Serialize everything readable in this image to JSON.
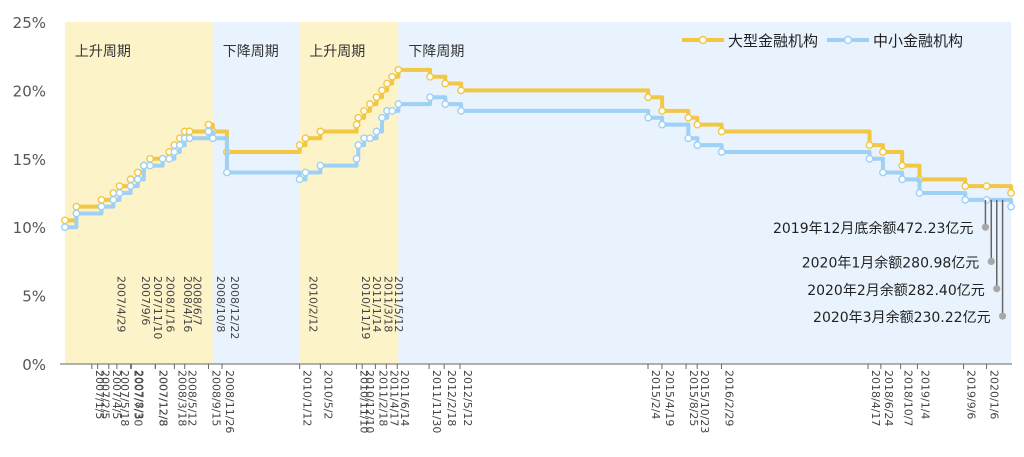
{
  "chart_data": {
    "type": "line",
    "ylim": [
      0,
      25
    ],
    "y_ticks": [
      "0%",
      "5%",
      "10%",
      "15%",
      "20%",
      "25%"
    ],
    "legend_position": "top-right",
    "legend": [
      "大型金融机构",
      "中小金融机构"
    ],
    "colors": {
      "large": "#f2c744",
      "small": "#9fd0f5",
      "up_band": "#fdf3c9",
      "down_band": "#e8f3fd",
      "marker": "#a8a8a8",
      "grid_text": "#555555"
    },
    "periods": [
      {
        "label": "上升周期",
        "kind": "up",
        "start": "2006-08-15",
        "end": "2008-10-08"
      },
      {
        "label": "下降周期",
        "kind": "down",
        "start": "2008-10-08",
        "end": "2010-01-10"
      },
      {
        "label": "上升周期",
        "kind": "up",
        "start": "2010-01-10",
        "end": "2011-06-20"
      },
      {
        "label": "下降周期",
        "kind": "down",
        "start": "2011-06-20",
        "end": "2020-05-15"
      }
    ],
    "top_labels": [
      "2007/4/29",
      "2007/9/6",
      "2007/11/10",
      "2008/1/16",
      "2008/4/16",
      "2008/6/7",
      "2008/10/8",
      "2008/12/22",
      "2010/2/12",
      "2010/11/19",
      "2011/1/14",
      "2011/3/18",
      "2011/5/12"
    ],
    "bottom_labels": [
      "2007/1/5",
      "2007/2/5",
      "2007/4/5",
      "2007/5/18",
      "2007/7/30",
      "2007/8/3",
      "2007/12/8",
      "2007/12/8",
      "2008/3/18",
      "2008/5/12",
      "2008/9/15",
      "2008/11/26",
      "2010/1/12",
      "2010/5/2",
      "2010/11/10",
      "2010/12/10",
      "2011/2/18",
      "2011/4/17",
      "2011/6/14",
      "2011/11/30",
      "2012/2/18",
      "2012/5/12",
      "2015/2/4",
      "2015/4/19",
      "2015/8/25",
      "2015/10/23",
      "2016/2/29",
      "2018/4/17",
      "2018/6/24",
      "2018/10/7",
      "2019/1/4",
      "2019/9/6",
      "2020/1/6"
    ],
    "series": [
      {
        "name": "大型金融机构",
        "points": [
          [
            "2006-08-15",
            10.5
          ],
          [
            "2006-10-15",
            11.5
          ],
          [
            "2007-02-25",
            12
          ],
          [
            "2007-04-29",
            12.5
          ],
          [
            "2007-06-01",
            13
          ],
          [
            "2007-07-30",
            13.5
          ],
          [
            "2007-09-06",
            14
          ],
          [
            "2007-10-08",
            14.5
          ],
          [
            "2007-11-10",
            15
          ],
          [
            "2008-01-16",
            15
          ],
          [
            "2008-02-20",
            15.5
          ],
          [
            "2008-03-18",
            16
          ],
          [
            "2008-04-16",
            16.5
          ],
          [
            "2008-05-12",
            17
          ],
          [
            "2008-06-07",
            17
          ],
          [
            "2008-09-15",
            17.5
          ],
          [
            "2008-10-08",
            17
          ],
          [
            "2008-12-22",
            15.5
          ],
          [
            "2010-01-12",
            16
          ],
          [
            "2010-02-12",
            16.5
          ],
          [
            "2010-05-02",
            17
          ],
          [
            "2010-11-10",
            17.5
          ],
          [
            "2010-11-19",
            18
          ],
          [
            "2010-12-20",
            18.5
          ],
          [
            "2011-01-20",
            19
          ],
          [
            "2011-02-24",
            19.5
          ],
          [
            "2011-03-25",
            20
          ],
          [
            "2011-04-21",
            20.5
          ],
          [
            "2011-05-18",
            21
          ],
          [
            "2011-06-20",
            21.5
          ],
          [
            "2011-12-05",
            21
          ],
          [
            "2012-02-24",
            20.5
          ],
          [
            "2012-05-18",
            20
          ],
          [
            "2015-02-05",
            19.5
          ],
          [
            "2015-04-20",
            18.5
          ],
          [
            "2015-09-06",
            18
          ],
          [
            "2015-10-24",
            17.5
          ],
          [
            "2016-03-01",
            17
          ],
          [
            "2018-04-25",
            16
          ],
          [
            "2018-07-05",
            15.5
          ],
          [
            "2018-10-15",
            14.5
          ],
          [
            "2019-01-15",
            13.5
          ],
          [
            "2019-09-15",
            13
          ],
          [
            "2020-01-06",
            13
          ],
          [
            "2020-05-15",
            12.5
          ]
        ]
      },
      {
        "name": "中小金融机构",
        "points": [
          [
            "2006-08-15",
            10
          ],
          [
            "2006-10-15",
            11
          ],
          [
            "2007-02-25",
            11.5
          ],
          [
            "2007-04-29",
            12
          ],
          [
            "2007-06-01",
            12.5
          ],
          [
            "2007-07-30",
            13
          ],
          [
            "2007-09-06",
            13.5
          ],
          [
            "2007-10-08",
            14.5
          ],
          [
            "2007-11-10",
            14.5
          ],
          [
            "2008-01-16",
            15
          ],
          [
            "2008-02-20",
            15
          ],
          [
            "2008-03-18",
            15.5
          ],
          [
            "2008-04-16",
            16
          ],
          [
            "2008-05-12",
            16.5
          ],
          [
            "2008-06-07",
            16.5
          ],
          [
            "2008-09-15",
            17
          ],
          [
            "2008-10-08",
            16.5
          ],
          [
            "2008-12-22",
            14
          ],
          [
            "2010-01-12",
            13.5
          ],
          [
            "2010-02-12",
            14
          ],
          [
            "2010-05-02",
            14.5
          ],
          [
            "2010-11-10",
            15
          ],
          [
            "2010-11-19",
            16
          ],
          [
            "2010-12-20",
            16.5
          ],
          [
            "2011-01-20",
            16.5
          ],
          [
            "2011-02-24",
            17
          ],
          [
            "2011-03-25",
            18
          ],
          [
            "2011-04-21",
            18.5
          ],
          [
            "2011-05-18",
            18.5
          ],
          [
            "2011-06-20",
            19
          ],
          [
            "2011-12-05",
            19.5
          ],
          [
            "2012-02-24",
            19
          ],
          [
            "2012-05-18",
            18.5
          ],
          [
            "2015-02-05",
            18
          ],
          [
            "2015-04-20",
            17.5
          ],
          [
            "2015-09-06",
            16.5
          ],
          [
            "2015-10-24",
            16
          ],
          [
            "2016-03-01",
            15.5
          ],
          [
            "2018-04-25",
            15
          ],
          [
            "2018-07-05",
            14
          ],
          [
            "2018-10-15",
            13.5
          ],
          [
            "2019-01-15",
            12.5
          ],
          [
            "2019-09-15",
            12
          ],
          [
            "2020-01-06",
            12
          ],
          [
            "2020-05-15",
            11.5
          ]
        ]
      }
    ],
    "annotations": [
      {
        "text": "2019年12月底余额472.23亿元",
        "date": "2019-12-31",
        "y": 10
      },
      {
        "text": "2020年1月余额280.98亿元",
        "date": "2020-01-31",
        "y": 7.5
      },
      {
        "text": "2020年2月余额282.40亿元",
        "date": "2020-02-29",
        "y": 5.5
      },
      {
        "text": "2020年3月余额230.22亿元",
        "date": "2020-03-31",
        "y": 3.5
      }
    ]
  }
}
